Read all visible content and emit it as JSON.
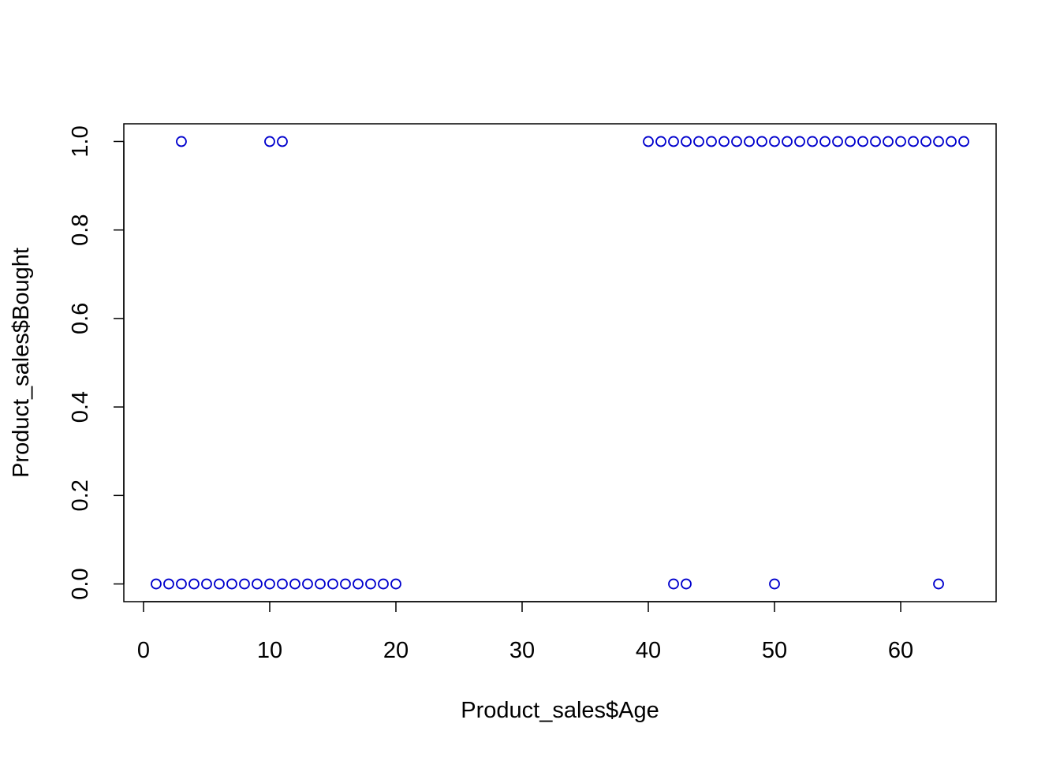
{
  "chart_data": {
    "type": "scatter",
    "xlabel": "Product_sales$Age",
    "ylabel": "Product_sales$Bought",
    "color": "#0000cd",
    "x": [
      3,
      10,
      11,
      40,
      41,
      42,
      43,
      44,
      45,
      46,
      47,
      48,
      49,
      50,
      51,
      52,
      53,
      54,
      55,
      56,
      57,
      58,
      59,
      60,
      61,
      62,
      63,
      64,
      65,
      1,
      2,
      3,
      4,
      5,
      6,
      7,
      8,
      9,
      10,
      11,
      12,
      13,
      14,
      15,
      16,
      17,
      18,
      19,
      20,
      42,
      43,
      50,
      63
    ],
    "values": [
      1,
      1,
      1,
      1,
      1,
      1,
      1,
      1,
      1,
      1,
      1,
      1,
      1,
      1,
      1,
      1,
      1,
      1,
      1,
      1,
      1,
      1,
      1,
      1,
      1,
      1,
      1,
      1,
      1,
      0,
      0,
      0,
      0,
      0,
      0,
      0,
      0,
      0,
      0,
      0,
      0,
      0,
      0,
      0,
      0,
      0,
      0,
      0,
      0,
      0,
      0,
      0,
      0
    ],
    "xlim": [
      -1.56,
      67.56
    ],
    "ylim": [
      -0.04,
      1.04
    ],
    "xticks": [
      0,
      10,
      20,
      30,
      40,
      50,
      60
    ],
    "yticks": [
      {
        "value": 0,
        "label": "0.0"
      },
      0.2,
      0.4,
      0.6,
      0.8,
      {
        "value": 1,
        "label": "1.0"
      }
    ]
  }
}
